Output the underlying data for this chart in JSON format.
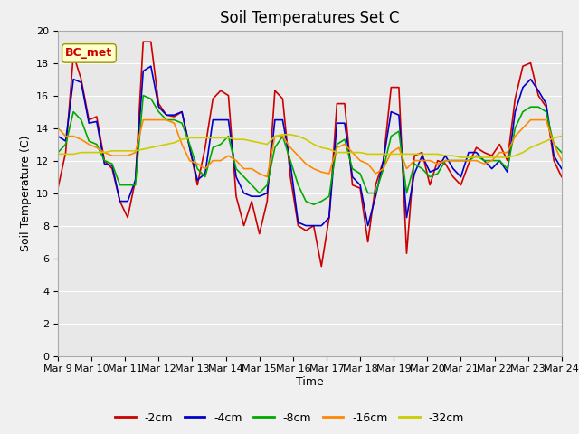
{
  "title": "Soil Temperatures Set C",
  "xlabel": "Time",
  "ylabel": "Soil Temperature (C)",
  "annotation": "BC_met",
  "ylim": [
    0,
    20
  ],
  "yticks": [
    0,
    2,
    4,
    6,
    8,
    10,
    12,
    14,
    16,
    18,
    20
  ],
  "x_labels": [
    "Mar 9",
    "Mar 10",
    "Mar 11",
    "Mar 12",
    "Mar 13",
    "Mar 14",
    "Mar 15",
    "Mar 16",
    "Mar 17",
    "Mar 18",
    "Mar 19",
    "Mar 20",
    "Mar 21",
    "Mar 22",
    "Mar 23",
    "Mar 24"
  ],
  "colors": {
    "-2cm": "#cc0000",
    "-4cm": "#0000cc",
    "-8cm": "#00aa00",
    "-16cm": "#ff8800",
    "-32cm": "#cccc00"
  },
  "series": {
    "-2cm": [
      10.3,
      12.5,
      18.5,
      17.0,
      14.5,
      14.7,
      12.0,
      11.5,
      9.5,
      8.5,
      10.8,
      19.3,
      19.3,
      15.5,
      14.8,
      14.7,
      15.0,
      12.8,
      10.5,
      12.8,
      15.8,
      16.3,
      16.0,
      9.8,
      8.0,
      9.5,
      7.5,
      9.5,
      16.3,
      15.8,
      11.0,
      8.0,
      7.7,
      8.0,
      5.5,
      8.5,
      15.5,
      15.5,
      10.5,
      10.3,
      7.0,
      10.5,
      12.0,
      16.5,
      16.5,
      6.3,
      12.3,
      12.5,
      10.5,
      12.0,
      11.8,
      11.0,
      10.5,
      11.8,
      12.8,
      12.5,
      12.3,
      13.0,
      12.0,
      15.8,
      17.8,
      18.0,
      16.0,
      15.3,
      12.0,
      11.0
    ],
    "-4cm": [
      13.5,
      13.2,
      17.0,
      16.8,
      14.3,
      14.4,
      11.8,
      11.7,
      9.5,
      9.5,
      10.8,
      17.5,
      17.8,
      15.3,
      14.8,
      14.8,
      15.0,
      12.8,
      10.8,
      11.2,
      14.5,
      14.5,
      14.5,
      11.0,
      10.0,
      9.8,
      9.8,
      10.0,
      14.5,
      14.5,
      11.8,
      8.2,
      8.0,
      8.0,
      8.0,
      8.5,
      14.3,
      14.3,
      11.0,
      10.5,
      8.0,
      9.8,
      12.0,
      15.0,
      14.8,
      8.5,
      11.2,
      12.3,
      11.3,
      11.5,
      12.3,
      11.5,
      11.0,
      12.5,
      12.5,
      12.0,
      11.5,
      12.0,
      11.3,
      15.0,
      16.5,
      17.0,
      16.3,
      15.5,
      12.3,
      11.5
    ],
    "-8cm": [
      12.5,
      13.0,
      15.0,
      14.5,
      13.2,
      13.0,
      12.0,
      11.8,
      10.5,
      10.5,
      10.5,
      16.0,
      15.8,
      15.0,
      14.5,
      14.5,
      14.3,
      13.0,
      11.5,
      11.0,
      12.8,
      13.0,
      13.5,
      11.5,
      11.0,
      10.5,
      10.0,
      10.5,
      12.8,
      13.5,
      12.0,
      10.5,
      9.5,
      9.3,
      9.5,
      9.8,
      13.0,
      13.3,
      11.5,
      11.2,
      10.0,
      10.0,
      11.5,
      13.5,
      13.8,
      10.0,
      11.8,
      11.5,
      11.0,
      11.2,
      12.0,
      12.0,
      12.0,
      12.0,
      12.3,
      12.0,
      12.0,
      12.0,
      11.5,
      14.0,
      15.0,
      15.3,
      15.3,
      15.0,
      13.0,
      12.5
    ],
    "-16cm": [
      14.0,
      13.5,
      13.5,
      13.3,
      13.0,
      12.8,
      12.5,
      12.3,
      12.3,
      12.3,
      12.5,
      14.5,
      14.5,
      14.5,
      14.5,
      14.3,
      13.0,
      12.0,
      11.8,
      11.5,
      12.0,
      12.0,
      12.3,
      12.0,
      11.5,
      11.5,
      11.2,
      11.0,
      13.5,
      13.5,
      12.8,
      12.3,
      11.8,
      11.5,
      11.3,
      11.2,
      12.8,
      13.0,
      12.5,
      12.0,
      11.8,
      11.2,
      11.5,
      12.5,
      12.8,
      11.5,
      12.0,
      12.0,
      12.0,
      11.8,
      12.0,
      12.0,
      12.0,
      12.0,
      12.0,
      11.8,
      12.0,
      12.5,
      12.5,
      13.5,
      14.0,
      14.5,
      14.5,
      14.5,
      13.0,
      12.0
    ],
    "-32cm": [
      12.4,
      12.4,
      12.4,
      12.5,
      12.5,
      12.5,
      12.5,
      12.6,
      12.6,
      12.6,
      12.6,
      12.7,
      12.8,
      12.9,
      13.0,
      13.1,
      13.3,
      13.4,
      13.4,
      13.4,
      13.4,
      13.4,
      13.4,
      13.3,
      13.3,
      13.2,
      13.1,
      13.0,
      13.5,
      13.6,
      13.6,
      13.5,
      13.3,
      13.0,
      12.8,
      12.7,
      12.5,
      12.5,
      12.5,
      12.5,
      12.4,
      12.4,
      12.4,
      12.4,
      12.4,
      12.4,
      12.4,
      12.4,
      12.4,
      12.4,
      12.3,
      12.3,
      12.2,
      12.2,
      12.2,
      12.2,
      12.2,
      12.2,
      12.2,
      12.3,
      12.5,
      12.8,
      13.0,
      13.2,
      13.4,
      13.5
    ]
  },
  "background_color": "#e8e8e8",
  "plot_bg_color": "#d8d8d8",
  "grid_color": "#ffffff",
  "fig_bg_color": "#f0f0f0",
  "title_fontsize": 12,
  "label_fontsize": 9,
  "tick_fontsize": 8,
  "legend_fontsize": 9,
  "annotation_fontsize": 9,
  "linewidth": 1.2
}
